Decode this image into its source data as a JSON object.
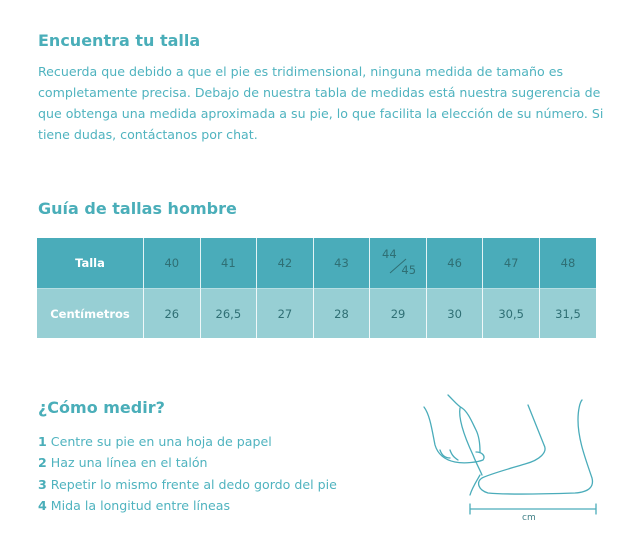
{
  "intro": {
    "title": "Encuentra tu talla",
    "text": "Recuerda que debido a que el pie es tridimensional, ninguna medida de tamaño es completamente precisa. Debajo de nuestra tabla de medidas está nuestra sugerencia de que obtenga una medida aproximada a su pie, lo que facilita la elección de su número. Si tiene dudas, contáctanos por chat."
  },
  "guide": {
    "title": "Guía de tallas hombre",
    "size_label": "Talla",
    "cm_label": "Centímetros",
    "sizes": [
      "40",
      "41",
      "42",
      "43",
      [
        "44",
        "45"
      ],
      "46",
      "47",
      "48"
    ],
    "cm": [
      "26",
      "26,5",
      "27",
      "28",
      "29",
      "30",
      "30,5",
      "31,5"
    ]
  },
  "howto": {
    "title": "¿Cómo medir?",
    "steps": [
      {
        "n": "1",
        "text": "Centre su pie en una hoja de papel"
      },
      {
        "n": "2",
        "text": "Haz una línea en el talón"
      },
      {
        "n": "3",
        "text": "Repetir lo mismo frente al dedo gordo del pie"
      },
      {
        "n": "4",
        "text": "Mida la longitud entre líneas"
      }
    ],
    "unit": "cm"
  },
  "colors": {
    "accent": "#4aaeb9",
    "header_row": "#4aacba",
    "cm_row": "#97cfd4"
  }
}
